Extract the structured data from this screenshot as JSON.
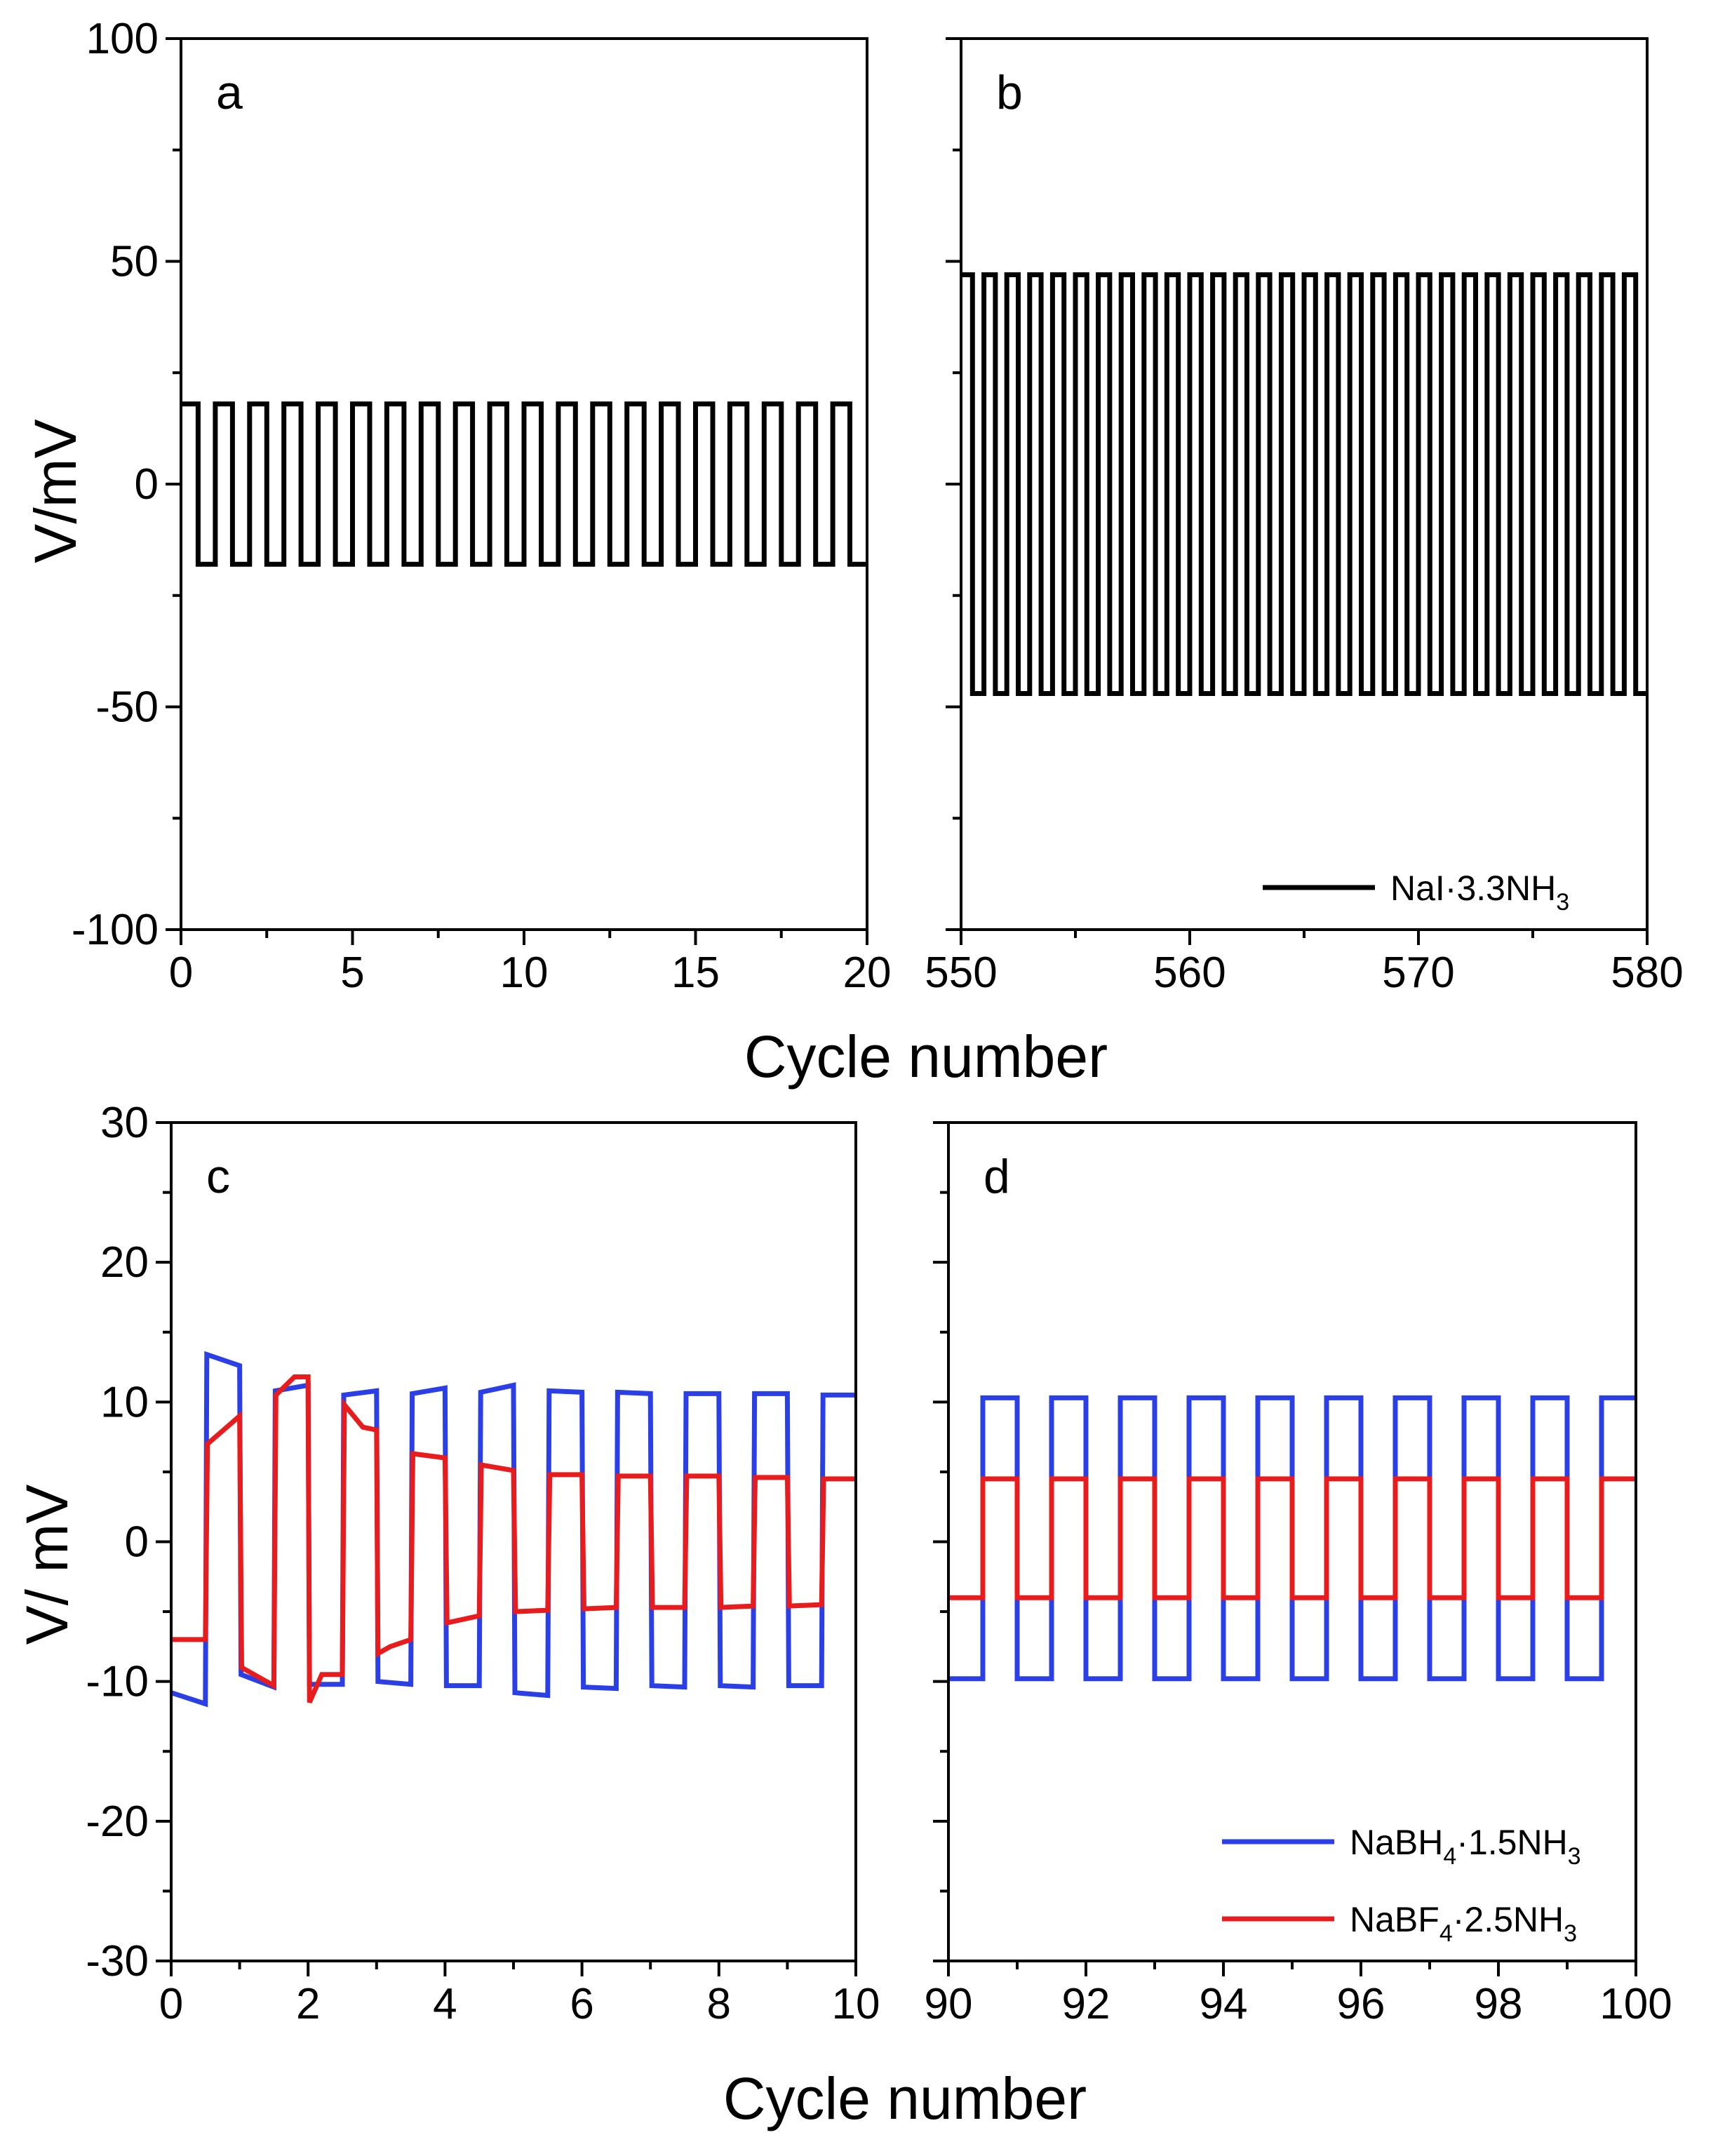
{
  "figure": {
    "top_xlabel": "Cycle number",
    "top_ylabel": "V/mV",
    "bottom_xlabel": "Cycle number",
    "bottom_ylabel": "V/ mV"
  },
  "chart_data": [
    {
      "id": "a",
      "type": "line",
      "panel_label": "a",
      "xlim": [
        0,
        20
      ],
      "ylim": [
        -100,
        100
      ],
      "xticks": [
        0,
        5,
        10,
        15,
        20
      ],
      "xtick_labels": [
        "0",
        "5",
        "10",
        "15",
        "20"
      ],
      "yticks": [
        -100,
        -50,
        0,
        50,
        100
      ],
      "ytick_labels": [
        "-100",
        "-50",
        "0",
        "50",
        "100"
      ],
      "xlabel": "Cycle number",
      "ylabel": "V/mV",
      "series": [
        {
          "name": "NaI·3.3NH3",
          "color": "#000000",
          "square_wave": {
            "start": 0,
            "period": 1,
            "cycles": 20,
            "high": 18,
            "low": -18,
            "first_half": "high"
          }
        }
      ]
    },
    {
      "id": "b",
      "type": "line",
      "panel_label": "b",
      "xlim": [
        550,
        580
      ],
      "ylim": [
        -100,
        100
      ],
      "xticks": [
        550,
        560,
        570,
        580
      ],
      "xtick_labels": [
        "550",
        "560",
        "570",
        "580"
      ],
      "yticks": [
        -100,
        -50,
        0,
        50,
        100
      ],
      "ytick_labels": [
        "",
        "",
        "",
        "",
        ""
      ],
      "xlabel": "Cycle number",
      "ylabel": "",
      "series": [
        {
          "name": "NaI·3.3NH3",
          "color": "#000000",
          "square_wave": {
            "start": 550,
            "period": 1,
            "cycles": 30,
            "high": 47,
            "low": -47,
            "first_half": "high"
          }
        }
      ],
      "legend": {
        "placement": "bottom-right",
        "entries": [
          {
            "label_main": "NaI·3.3NH",
            "label_sub": "3",
            "color": "#000000"
          }
        ]
      }
    },
    {
      "id": "c",
      "type": "line",
      "panel_label": "c",
      "xlim": [
        0,
        10
      ],
      "ylim": [
        -30,
        30
      ],
      "xticks": [
        0,
        2,
        4,
        6,
        8,
        10
      ],
      "xtick_labels": [
        "0",
        "2",
        "4",
        "6",
        "8",
        "10"
      ],
      "yticks": [
        -30,
        -20,
        -10,
        0,
        10,
        20,
        30
      ],
      "ytick_labels": [
        "-30",
        "-20",
        "-10",
        "0",
        "10",
        "20",
        "30"
      ],
      "xlabel": "Cycle number",
      "ylabel": "V/ mV",
      "series": [
        {
          "name": "NaBH4·1.5NH3",
          "color": "#2b3fe6",
          "points": [
            [
              0,
              -10.8
            ],
            [
              0.5,
              -11.6
            ],
            [
              0.52,
              13.4
            ],
            [
              1.0,
              12.6
            ],
            [
              1.02,
              -9.5
            ],
            [
              1.5,
              -10.4
            ],
            [
              1.52,
              10.8
            ],
            [
              2.0,
              11.2
            ],
            [
              2.02,
              -10.2
            ],
            [
              2.5,
              -10.2
            ],
            [
              2.52,
              10.5
            ],
            [
              3.0,
              10.8
            ],
            [
              3.02,
              -10.0
            ],
            [
              3.5,
              -10.2
            ],
            [
              3.52,
              10.6
            ],
            [
              4.0,
              11.0
            ],
            [
              4.02,
              -10.3
            ],
            [
              4.5,
              -10.3
            ],
            [
              4.52,
              10.7
            ],
            [
              5.0,
              11.2
            ],
            [
              5.02,
              -10.8
            ],
            [
              5.5,
              -11.0
            ],
            [
              5.52,
              10.8
            ],
            [
              6.0,
              10.7
            ],
            [
              6.02,
              -10.4
            ],
            [
              6.5,
              -10.5
            ],
            [
              6.52,
              10.7
            ],
            [
              7.0,
              10.6
            ],
            [
              7.02,
              -10.3
            ],
            [
              7.5,
              -10.4
            ],
            [
              7.52,
              10.6
            ],
            [
              8.0,
              10.6
            ],
            [
              8.02,
              -10.3
            ],
            [
              8.5,
              -10.4
            ],
            [
              8.52,
              10.6
            ],
            [
              9.0,
              10.6
            ],
            [
              9.02,
              -10.3
            ],
            [
              9.5,
              -10.3
            ],
            [
              9.52,
              10.5
            ],
            [
              10.0,
              10.5
            ]
          ]
        },
        {
          "name": "NaBF4·2.5NH3",
          "color": "#e81c1c",
          "points": [
            [
              0,
              -7.0
            ],
            [
              0.5,
              -7.0
            ],
            [
              0.53,
              7.0
            ],
            [
              1.0,
              9.0
            ],
            [
              1.03,
              -9.0
            ],
            [
              1.5,
              -10.3
            ],
            [
              1.53,
              10.5
            ],
            [
              1.8,
              11.8
            ],
            [
              2.0,
              11.8
            ],
            [
              2.02,
              -11.5
            ],
            [
              2.2,
              -9.5
            ],
            [
              2.5,
              -9.5
            ],
            [
              2.53,
              9.8
            ],
            [
              2.8,
              8.2
            ],
            [
              3.0,
              8.0
            ],
            [
              3.02,
              -8.0
            ],
            [
              3.2,
              -7.5
            ],
            [
              3.5,
              -7.0
            ],
            [
              3.53,
              6.3
            ],
            [
              4.0,
              6.0
            ],
            [
              4.03,
              -5.8
            ],
            [
              4.5,
              -5.3
            ],
            [
              4.53,
              5.5
            ],
            [
              5.0,
              5.1
            ],
            [
              5.03,
              -5.0
            ],
            [
              5.5,
              -4.9
            ],
            [
              5.53,
              4.8
            ],
            [
              6.0,
              4.8
            ],
            [
              6.03,
              -4.8
            ],
            [
              6.5,
              -4.7
            ],
            [
              6.53,
              4.7
            ],
            [
              7.0,
              4.7
            ],
            [
              7.03,
              -4.7
            ],
            [
              7.5,
              -4.7
            ],
            [
              7.53,
              4.7
            ],
            [
              8.0,
              4.7
            ],
            [
              8.03,
              -4.7
            ],
            [
              8.5,
              -4.6
            ],
            [
              8.53,
              4.6
            ],
            [
              9.0,
              4.6
            ],
            [
              9.03,
              -4.6
            ],
            [
              9.5,
              -4.5
            ],
            [
              9.53,
              4.5
            ],
            [
              10.0,
              4.5
            ]
          ]
        }
      ]
    },
    {
      "id": "d",
      "type": "line",
      "panel_label": "d",
      "xlim": [
        90,
        100
      ],
      "ylim": [
        -30,
        30
      ],
      "xticks": [
        90,
        92,
        94,
        96,
        98,
        100
      ],
      "xtick_labels": [
        "90",
        "92",
        "94",
        "96",
        "98",
        "100"
      ],
      "yticks": [
        -30,
        -20,
        -10,
        0,
        10,
        20,
        30
      ],
      "ytick_labels": [
        "",
        "",
        "",
        "",
        "",
        "",
        ""
      ],
      "xlabel": "Cycle number",
      "ylabel": "",
      "series": [
        {
          "name": "NaBH4·1.5NH3",
          "color": "#2b3fe6",
          "square_wave": {
            "start": 90,
            "period": 1,
            "cycles": 10,
            "high": 10.3,
            "low": -9.8,
            "first_half": "low"
          }
        },
        {
          "name": "NaBF4·2.5NH3",
          "color": "#e81c1c",
          "square_wave": {
            "start": 90,
            "period": 1,
            "cycles": 10,
            "high": 4.5,
            "low": -4.0,
            "first_half": "low"
          }
        }
      ],
      "legend": {
        "placement": "bottom-right",
        "entries": [
          {
            "label_main": "NaBH",
            "label_sub": "4",
            "label_rest": "·1.5NH",
            "label_sub2": "3",
            "color": "#2b3fe6"
          },
          {
            "label_main": "NaBF",
            "label_sub": "4",
            "label_rest": "·2.5NH",
            "label_sub2": "3",
            "color": "#e81c1c"
          }
        ]
      }
    }
  ]
}
